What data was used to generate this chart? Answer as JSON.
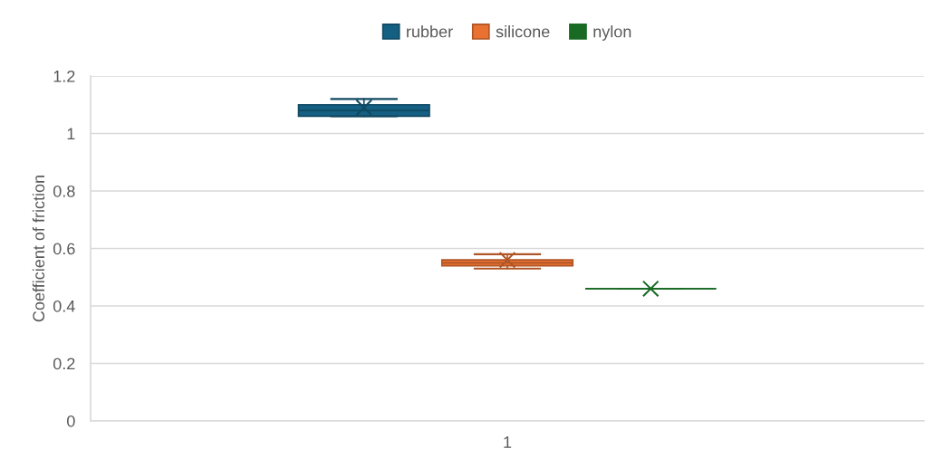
{
  "chart_data": {
    "type": "box",
    "categories": [
      "1"
    ],
    "ylabel": "Coefficient of friction",
    "ylim": [
      0,
      1.2
    ],
    "yticks": [
      0,
      0.2,
      0.4,
      0.6,
      0.8,
      1,
      1.2
    ],
    "grid": "y",
    "legend": "top",
    "marker": "cross",
    "series": [
      {
        "name": "rubber",
        "color": "#156082",
        "boxes": [
          {
            "low": 1.06,
            "q1": 1.06,
            "median": 1.08,
            "q3": 1.1,
            "high": 1.12,
            "mean": 1.09
          }
        ]
      },
      {
        "name": "silicone",
        "color": "#e97132",
        "boxes": [
          {
            "low": 0.53,
            "q1": 0.54,
            "median": 0.55,
            "q3": 0.56,
            "high": 0.58,
            "mean": 0.56
          }
        ]
      },
      {
        "name": "nylon",
        "color": "#196b24",
        "boxes": [
          {
            "low": 0.46,
            "q1": 0.46,
            "median": 0.46,
            "q3": 0.46,
            "high": 0.46,
            "mean": 0.46
          }
        ]
      }
    ]
  }
}
